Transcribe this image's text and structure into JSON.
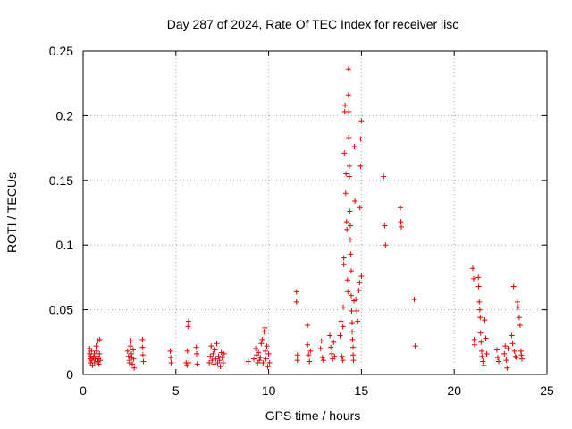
{
  "chart_data": {
    "type": "scatter",
    "title": "Day 287 of 2024, Rate Of TEC Index for receiver iisc",
    "xlabel": "GPS time / hours",
    "ylabel": "ROTI / TECUs",
    "xlim": [
      0,
      25
    ],
    "ylim": [
      0,
      0.25
    ],
    "x_ticks": [
      0,
      5,
      10,
      15,
      20,
      25
    ],
    "x_tick_labels": [
      "0",
      "5",
      "10",
      "15",
      "20",
      "25"
    ],
    "y_ticks": [
      0,
      0.05,
      0.1,
      0.15,
      0.2,
      0.25
    ],
    "y_tick_labels": [
      "0",
      "0.05",
      "0.1",
      "0.15",
      "0.2",
      "0.25"
    ],
    "grid": true,
    "marker": "+",
    "marker_color": "#e00000",
    "series": [
      {
        "name": "ROTI",
        "points": [
          [
            0.35,
            0.02
          ],
          [
            0.35,
            0.016
          ],
          [
            0.38,
            0.012
          ],
          [
            0.4,
            0.009
          ],
          [
            0.42,
            0.014
          ],
          [
            0.45,
            0.018
          ],
          [
            0.47,
            0.011
          ],
          [
            0.5,
            0.007
          ],
          [
            0.55,
            0.013
          ],
          [
            0.6,
            0.016
          ],
          [
            0.62,
            0.009
          ],
          [
            0.65,
            0.012
          ],
          [
            0.7,
            0.022
          ],
          [
            0.72,
            0.018
          ],
          [
            0.75,
            0.014
          ],
          [
            0.78,
            0.01
          ],
          [
            0.8,
            0.026
          ],
          [
            0.82,
            0.012
          ],
          [
            0.85,
            0.008
          ],
          [
            0.88,
            0.016
          ],
          [
            0.9,
            0.027
          ],
          [
            0.92,
            0.011
          ],
          [
            2.4,
            0.018
          ],
          [
            2.45,
            0.014
          ],
          [
            2.5,
            0.011
          ],
          [
            2.5,
            0.009
          ],
          [
            2.55,
            0.022
          ],
          [
            2.58,
            0.026
          ],
          [
            2.6,
            0.016
          ],
          [
            2.62,
            0.013
          ],
          [
            2.65,
            0.008
          ],
          [
            2.7,
            0.019
          ],
          [
            2.72,
            0.012
          ],
          [
            2.75,
            0.005
          ],
          [
            3.2,
            0.027
          ],
          [
            3.2,
            0.021
          ],
          [
            3.22,
            0.015
          ],
          [
            3.25,
            0.01
          ],
          [
            4.7,
            0.018
          ],
          [
            4.72,
            0.013
          ],
          [
            4.75,
            0.009
          ],
          [
            5.55,
            0.009
          ],
          [
            5.6,
            0.007
          ],
          [
            5.62,
            0.018
          ],
          [
            5.65,
            0.037
          ],
          [
            5.68,
            0.041
          ],
          [
            5.7,
            0.009
          ],
          [
            6.1,
            0.021
          ],
          [
            6.12,
            0.016
          ],
          [
            6.15,
            0.008
          ],
          [
            6.8,
            0.009
          ],
          [
            6.85,
            0.014
          ],
          [
            6.9,
            0.022
          ],
          [
            6.95,
            0.011
          ],
          [
            7.0,
            0.016
          ],
          [
            7.05,
            0.008
          ],
          [
            7.1,
            0.019
          ],
          [
            7.15,
            0.012
          ],
          [
            7.2,
            0.024
          ],
          [
            7.25,
            0.009
          ],
          [
            7.3,
            0.014
          ],
          [
            7.35,
            0.011
          ],
          [
            7.4,
            0.006
          ],
          [
            7.45,
            0.017
          ],
          [
            7.5,
            0.013
          ],
          [
            7.55,
            0.009
          ],
          [
            7.6,
            0.016
          ],
          [
            8.9,
            0.01
          ],
          [
            9.2,
            0.012
          ],
          [
            9.3,
            0.02
          ],
          [
            9.35,
            0.015
          ],
          [
            9.4,
            0.009
          ],
          [
            9.45,
            0.017
          ],
          [
            9.5,
            0.011
          ],
          [
            9.55,
            0.013
          ],
          [
            9.6,
            0.024
          ],
          [
            9.65,
            0.027
          ],
          [
            9.7,
            0.009
          ],
          [
            9.75,
            0.033
          ],
          [
            9.8,
            0.036
          ],
          [
            9.82,
            0.018
          ],
          [
            9.85,
            0.012
          ],
          [
            9.9,
            0.022
          ],
          [
            9.95,
            0.006
          ],
          [
            10.0,
            0.016
          ],
          [
            10.05,
            0.009
          ],
          [
            11.5,
            0.064
          ],
          [
            11.5,
            0.056
          ],
          [
            11.55,
            0.015
          ],
          [
            11.55,
            0.011
          ],
          [
            12.1,
            0.038
          ],
          [
            12.1,
            0.023
          ],
          [
            12.15,
            0.015
          ],
          [
            12.2,
            0.01
          ],
          [
            12.25,
            0.018
          ],
          [
            12.8,
            0.02
          ],
          [
            12.85,
            0.026
          ],
          [
            12.9,
            0.013
          ],
          [
            12.95,
            0.011
          ],
          [
            13.3,
            0.03
          ],
          [
            13.35,
            0.021
          ],
          [
            13.4,
            0.016
          ],
          [
            13.45,
            0.012
          ],
          [
            13.5,
            0.025
          ],
          [
            13.55,
            0.014
          ],
          [
            13.85,
            0.03
          ],
          [
            13.9,
            0.041
          ],
          [
            13.95,
            0.014
          ],
          [
            14.0,
            0.011
          ],
          [
            14.0,
            0.037
          ],
          [
            14.02,
            0.052
          ],
          [
            14.05,
            0.09
          ],
          [
            14.05,
            0.085
          ],
          [
            14.08,
            0.171
          ],
          [
            14.1,
            0.203
          ],
          [
            14.12,
            0.208
          ],
          [
            14.15,
            0.14
          ],
          [
            14.17,
            0.155
          ],
          [
            14.2,
            0.118
          ],
          [
            14.22,
            0.112
          ],
          [
            14.25,
            0.073
          ],
          [
            14.27,
            0.064
          ],
          [
            14.3,
            0.236
          ],
          [
            14.3,
            0.216
          ],
          [
            14.32,
            0.203
          ],
          [
            14.32,
            0.183
          ],
          [
            14.35,
            0.161
          ],
          [
            14.35,
            0.153
          ],
          [
            14.37,
            0.126
          ],
          [
            14.4,
            0.115
          ],
          [
            14.4,
            0.104
          ],
          [
            14.42,
            0.093
          ],
          [
            14.45,
            0.08
          ],
          [
            14.45,
            0.061
          ],
          [
            14.47,
            0.049
          ],
          [
            14.5,
            0.04
          ],
          [
            14.5,
            0.033
          ],
          [
            14.52,
            0.027
          ],
          [
            14.55,
            0.021
          ],
          [
            14.55,
            0.015
          ],
          [
            14.57,
            0.011
          ],
          [
            14.6,
            0.057
          ],
          [
            14.62,
            0.176
          ],
          [
            14.65,
            0.134
          ],
          [
            14.7,
            0.058
          ],
          [
            14.75,
            0.049
          ],
          [
            14.8,
            0.041
          ],
          [
            14.85,
            0.065
          ],
          [
            14.9,
            0.071
          ],
          [
            14.92,
            0.129
          ],
          [
            14.95,
            0.161
          ],
          [
            14.95,
            0.182
          ],
          [
            15.0,
            0.196
          ],
          [
            15.0,
            0.076
          ],
          [
            16.2,
            0.153
          ],
          [
            16.25,
            0.115
          ],
          [
            16.3,
            0.1
          ],
          [
            17.1,
            0.129
          ],
          [
            17.12,
            0.118
          ],
          [
            17.15,
            0.114
          ],
          [
            17.85,
            0.058
          ],
          [
            17.9,
            0.022
          ],
          [
            21.0,
            0.082
          ],
          [
            21.05,
            0.074
          ],
          [
            21.08,
            0.027
          ],
          [
            21.1,
            0.023
          ],
          [
            21.3,
            0.075
          ],
          [
            21.32,
            0.068
          ],
          [
            21.35,
            0.056
          ],
          [
            21.38,
            0.05
          ],
          [
            21.4,
            0.044
          ],
          [
            21.42,
            0.032
          ],
          [
            21.45,
            0.025
          ],
          [
            21.48,
            0.018
          ],
          [
            21.5,
            0.014
          ],
          [
            21.55,
            0.01
          ],
          [
            21.6,
            0.007
          ],
          [
            21.65,
            0.042
          ],
          [
            21.7,
            0.028
          ],
          [
            21.75,
            0.016
          ],
          [
            22.3,
            0.019
          ],
          [
            22.35,
            0.013
          ],
          [
            22.4,
            0.01
          ],
          [
            22.7,
            0.016
          ],
          [
            22.75,
            0.022
          ],
          [
            22.8,
            0.011
          ],
          [
            22.85,
            0.005
          ],
          [
            22.9,
            0.02
          ],
          [
            23.1,
            0.03
          ],
          [
            23.15,
            0.024
          ],
          [
            23.2,
            0.068
          ],
          [
            23.25,
            0.018
          ],
          [
            23.3,
            0.014
          ],
          [
            23.35,
            0.013
          ],
          [
            23.4,
            0.056
          ],
          [
            23.45,
            0.052
          ],
          [
            23.5,
            0.044
          ],
          [
            23.55,
            0.038
          ],
          [
            23.6,
            0.018
          ],
          [
            23.62,
            0.015
          ],
          [
            23.65,
            0.012
          ]
        ]
      }
    ]
  }
}
